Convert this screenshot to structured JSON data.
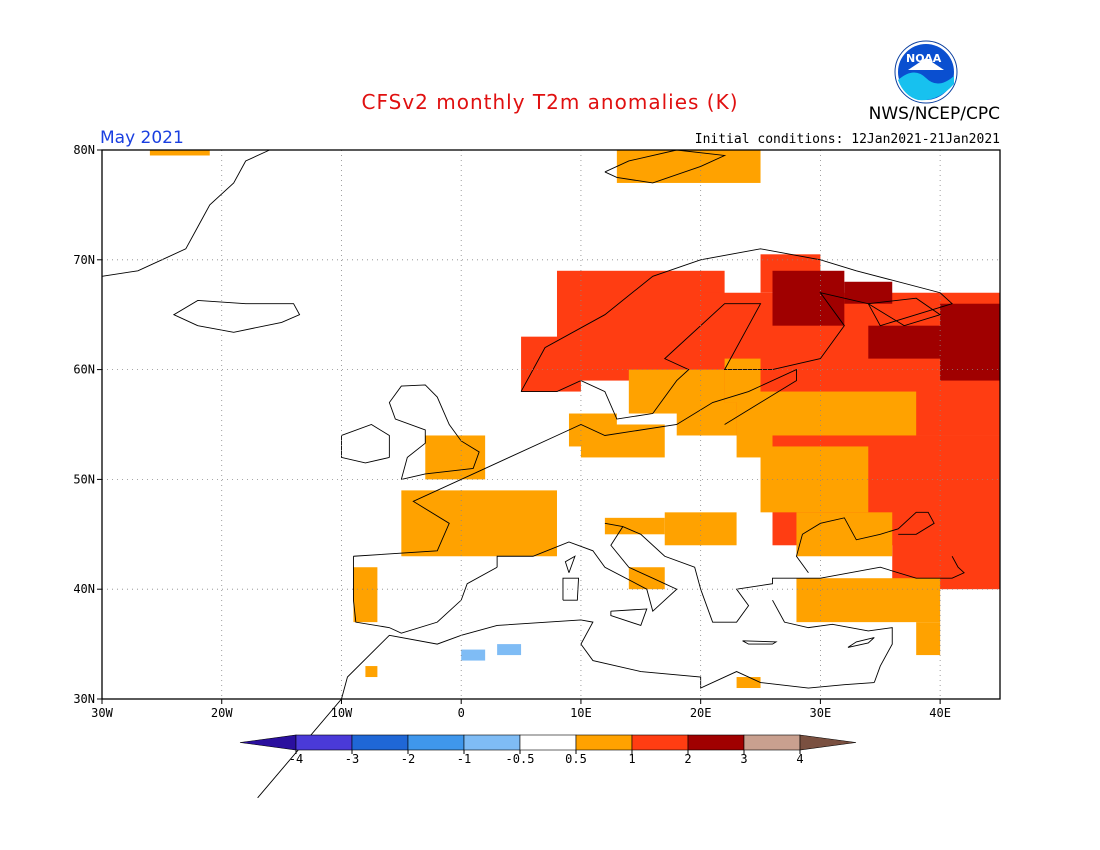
{
  "header": {
    "title": "CFSv2 monthly T2m anomalies (K)",
    "month": "May 2021",
    "agency": "NWS/NCEP/CPC",
    "initial_conditions": "Initial conditions: 12Jan2021-21Jan2021",
    "logo_text": "NOAA"
  },
  "map": {
    "region": "Europe",
    "lon_range": [
      -30,
      45
    ],
    "lat_range": [
      30,
      80
    ],
    "x_ticks": [
      "30W",
      "20W",
      "10W",
      "0",
      "10E",
      "20E",
      "30E",
      "40E"
    ],
    "y_ticks": [
      "80N",
      "70N",
      "60N",
      "50N",
      "40N",
      "30N"
    ],
    "grid": "dotted"
  },
  "colorbar": {
    "labels": [
      "-4",
      "-3",
      "-2",
      "-1",
      "-0.5",
      "0.5",
      "1",
      "2",
      "3",
      "4"
    ],
    "colors": [
      "#2a0f9e",
      "#4a3ad8",
      "#1f67d6",
      "#3f97ec",
      "#7fbcf5",
      "#ffffff",
      "#ffa200",
      "#ff3d12",
      "#a00000",
      "#c9a08f",
      "#7a5040"
    ]
  },
  "anomaly_colors": {
    "c1": "#ffa200",
    "c2": "#ff3d12",
    "c3": "#a00000",
    "cool": "#7fbcf5"
  }
}
